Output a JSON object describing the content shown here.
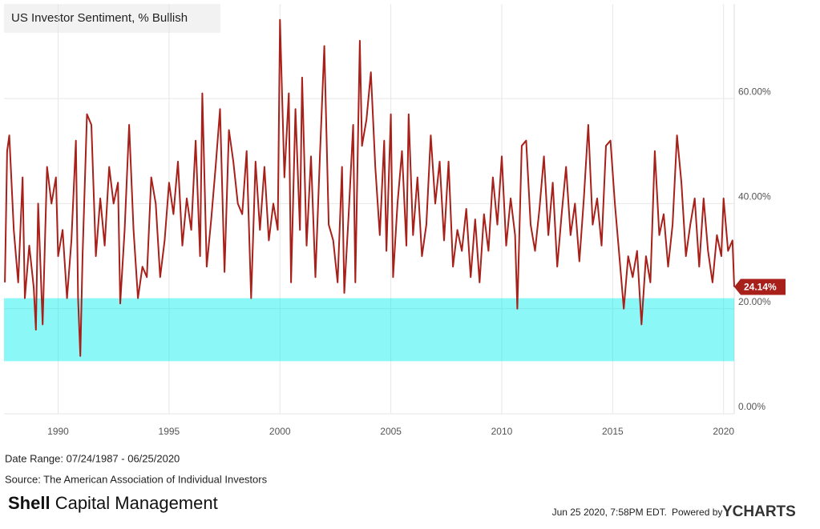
{
  "chart_data": {
    "type": "line",
    "title": "US Investor Sentiment, % Bullish",
    "x": [
      1987.6,
      1987.7,
      1987.8,
      1988.0,
      1988.2,
      1988.4,
      1988.5,
      1988.7,
      1988.9,
      1989.0,
      1989.1,
      1989.3,
      1989.5,
      1989.7,
      1989.9,
      1990.0,
      1990.2,
      1990.4,
      1990.6,
      1990.8,
      1990.9,
      1991.0,
      1991.1,
      1991.3,
      1991.5,
      1991.7,
      1991.9,
      1992.1,
      1992.3,
      1992.5,
      1992.7,
      1992.8,
      1993.0,
      1993.2,
      1993.4,
      1993.6,
      1993.8,
      1994.0,
      1994.2,
      1994.4,
      1994.6,
      1994.8,
      1995.0,
      1995.2,
      1995.4,
      1995.6,
      1995.8,
      1996.0,
      1996.2,
      1996.4,
      1996.5,
      1996.7,
      1996.9,
      1997.1,
      1997.3,
      1997.5,
      1997.7,
      1997.9,
      1998.1,
      1998.3,
      1998.5,
      1998.7,
      1998.9,
      1999.1,
      1999.3,
      1999.5,
      1999.7,
      1999.9,
      2000.0,
      2000.2,
      2000.4,
      2000.5,
      2000.7,
      2000.9,
      2001.0,
      2001.2,
      2001.4,
      2001.6,
      2001.8,
      2002.0,
      2002.2,
      2002.4,
      2002.6,
      2002.8,
      2002.9,
      2003.1,
      2003.3,
      2003.4,
      2003.6,
      2003.7,
      2003.9,
      2004.1,
      2004.3,
      2004.5,
      2004.7,
      2004.8,
      2005.0,
      2005.1,
      2005.3,
      2005.5,
      2005.7,
      2005.8,
      2006.0,
      2006.2,
      2006.4,
      2006.6,
      2006.8,
      2007.0,
      2007.2,
      2007.4,
      2007.6,
      2007.8,
      2008.0,
      2008.2,
      2008.4,
      2008.6,
      2008.8,
      2009.0,
      2009.2,
      2009.4,
      2009.6,
      2009.8,
      2010.0,
      2010.2,
      2010.4,
      2010.6,
      2010.7,
      2010.9,
      2011.1,
      2011.3,
      2011.5,
      2011.7,
      2011.9,
      2012.1,
      2012.3,
      2012.5,
      2012.7,
      2012.9,
      2013.1,
      2013.3,
      2013.5,
      2013.7,
      2013.9,
      2014.1,
      2014.3,
      2014.5,
      2014.7,
      2014.9,
      2015.1,
      2015.3,
      2015.5,
      2015.7,
      2015.9,
      2016.1,
      2016.3,
      2016.5,
      2016.7,
      2016.9,
      2017.1,
      2017.3,
      2017.5,
      2017.7,
      2017.9,
      2018.1,
      2018.3,
      2018.5,
      2018.7,
      2018.9,
      2019.1,
      2019.3,
      2019.5,
      2019.7,
      2019.9,
      2020.0,
      2020.2,
      2020.4,
      2020.48
    ],
    "series": [
      {
        "name": "US Investor Sentiment, % Bullish",
        "color": "#a8201a",
        "values": [
          25,
          50,
          53,
          35,
          25,
          45,
          22,
          32,
          24,
          16,
          40,
          17,
          47,
          40,
          45,
          30,
          35,
          22,
          33,
          52,
          22,
          11,
          30,
          57,
          55,
          30,
          41,
          32,
          47,
          40,
          44,
          21,
          35,
          55,
          35,
          22,
          28,
          26,
          45,
          40,
          26,
          33,
          44,
          38,
          48,
          32,
          41,
          35,
          52,
          30,
          61,
          28,
          37,
          47,
          58,
          27,
          54,
          48,
          40,
          38,
          50,
          22,
          48,
          35,
          47,
          33,
          40,
          35,
          75,
          45,
          61,
          25,
          58,
          35,
          64,
          32,
          49,
          26,
          49,
          70,
          36,
          33,
          25,
          47,
          23,
          38,
          55,
          25,
          71,
          51,
          56,
          65,
          47,
          34,
          52,
          31,
          57,
          26,
          40,
          50,
          32,
          57,
          34,
          45,
          30,
          36,
          53,
          40,
          48,
          33,
          48,
          28,
          35,
          31,
          39,
          26,
          37,
          25,
          38,
          31,
          45,
          36,
          49,
          32,
          41,
          34,
          20,
          51,
          52,
          36,
          31,
          39,
          49,
          34,
          44,
          28,
          38,
          47,
          34,
          40,
          29,
          41,
          55,
          36,
          41,
          32,
          51,
          52,
          40,
          30,
          20,
          30,
          26,
          31,
          17,
          30,
          25,
          50,
          34,
          38,
          28,
          36,
          53,
          44,
          30,
          36,
          41,
          28,
          41,
          31,
          25,
          34,
          30,
          41,
          31,
          33,
          24.14
        ]
      }
    ],
    "end_label": {
      "value": 24.14,
      "label": "24.14%"
    },
    "highlight_range": [
      10,
      22
    ],
    "xlim": [
      1987.56,
      2020.48
    ],
    "xticks": [
      1990,
      1995,
      2000,
      2005,
      2010,
      2015,
      2020
    ],
    "ylim": [
      0,
      78
    ],
    "yticks": [
      {
        "value": 0,
        "label": "0.00%"
      },
      {
        "value": 20,
        "label": "20.00%"
      },
      {
        "value": 40,
        "label": "40.00%"
      },
      {
        "value": 60,
        "label": "60.00%"
      }
    ],
    "grid": true
  },
  "footer": {
    "date_range": "Date Range: 07/24/1987 - 06/25/2020",
    "source": "Source: The American Association of Individual Investors",
    "brand_bold": "Shell",
    "brand_rest": "Capital Management",
    "timestamp": "Jun 25 2020, 7:58PM EDT.",
    "powered_by": "Powered by",
    "provider": "YCHARTS"
  }
}
